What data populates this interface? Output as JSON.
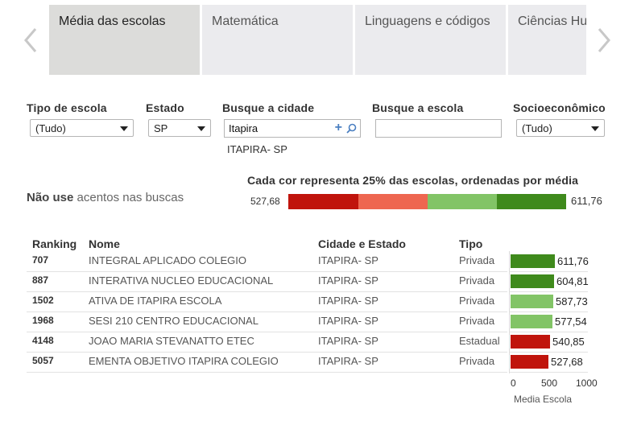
{
  "carousel": {
    "tabs": [
      "Média das escolas",
      "Matemática",
      "Linguagens e códigos",
      "Ciências Hu"
    ],
    "active_tab": 0,
    "prev_icon": "chevron-left-icon",
    "next_icon": "chevron-right-icon"
  },
  "filters": {
    "tipo_label": "Tipo de escola",
    "tipo_value": "(Tudo)",
    "estado_label": "Estado",
    "estado_value": "SP",
    "cidade_label": "Busque a cidade",
    "cidade_value": "Itapira",
    "cidade_result": "ITAPIRA- SP",
    "escola_label": "Busque a escola",
    "escola_value": "",
    "socio_label": "Socioeconômico",
    "socio_value": "(Tudo)"
  },
  "hint": {
    "bold": "Não use",
    "rest": " acentos nas buscas"
  },
  "legend": {
    "title": "Cada cor representa 25% das escolas, ordenadas por média",
    "min": "527,68",
    "max": "611,76",
    "colors": [
      "#c0140c",
      "#ee6650",
      "#82c466",
      "#3f8a1c"
    ]
  },
  "table": {
    "headers": {
      "ranking": "Ranking",
      "nome": "Nome",
      "cidade": "Cidade e Estado",
      "tipo": "Tipo"
    },
    "rows": [
      {
        "ranking": "707",
        "nome": "INTEGRAL APLICADO COLEGIO",
        "cidade": "ITAPIRA- SP",
        "tipo": "Privada",
        "media": "611,76"
      },
      {
        "ranking": "887",
        "nome": "INTERATIVA NUCLEO EDUCACIONAL",
        "cidade": "ITAPIRA- SP",
        "tipo": "Privada",
        "media": "604,81"
      },
      {
        "ranking": "1502",
        "nome": "ATIVA DE ITAPIRA ESCOLA",
        "cidade": "ITAPIRA- SP",
        "tipo": "Privada",
        "media": "587,73"
      },
      {
        "ranking": "1968",
        "nome": "SESI 210 CENTRO EDUCACIONAL",
        "cidade": "ITAPIRA- SP",
        "tipo": "Privada",
        "media": "577,54"
      },
      {
        "ranking": "4148",
        "nome": "JOAO MARIA STEVANATTO ETEC",
        "cidade": "ITAPIRA- SP",
        "tipo": "Estadual",
        "media": "540,85"
      },
      {
        "ranking": "5057",
        "nome": "EMENTA OBJETIVO ITAPIRA COLEGIO",
        "cidade": "ITAPIRA- SP",
        "tipo": "Privada",
        "media": "527,68"
      }
    ]
  },
  "chart_data": {
    "type": "bar",
    "categories": [
      "707",
      "887",
      "1502",
      "1968",
      "4148",
      "5057"
    ],
    "values": [
      611.76,
      604.81,
      587.73,
      577.54,
      540.85,
      527.68
    ],
    "value_labels": [
      "611,76",
      "604,81",
      "587,73",
      "577,54",
      "540,85",
      "527,68"
    ],
    "bar_colors": [
      "#3f8a1c",
      "#3f8a1c",
      "#82c466",
      "#82c466",
      "#c0140c",
      "#c0140c"
    ],
    "xlabel": "Media Escola",
    "xlim": [
      0,
      1000
    ],
    "ticks": [
      "0",
      "500",
      "1000"
    ]
  }
}
